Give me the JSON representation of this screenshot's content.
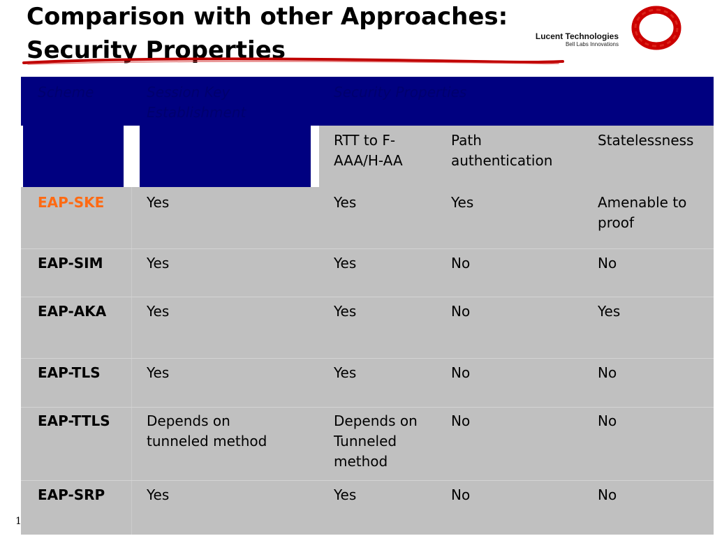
{
  "slide": {
    "title_line1": "Comparison with other Approaches:",
    "title_line2": "Security Properties",
    "brand_name": "Lucent Technologies",
    "brand_tagline": "Bell Labs Innovations",
    "page_number": "1",
    "accent_color": "#cc0000",
    "header_color": "#000080",
    "highlight_color": "#ff6a13"
  },
  "table": {
    "headers": {
      "scheme": "Scheme",
      "session_key": "Session Key Establishment",
      "security_properties": "Security Properties",
      "rtt": "RTT to F-AAA/H-AA",
      "path_auth": "Path authentication",
      "statelessness": "Statelessness"
    },
    "rows": [
      {
        "scheme": "EAP-SKE",
        "session_key": "Yes",
        "rtt": "Yes",
        "path_auth": "Yes",
        "statelessness": "Amenable to proof",
        "highlight": true
      },
      {
        "scheme": "EAP-SIM",
        "session_key": "Yes",
        "rtt": "Yes",
        "path_auth": "No",
        "statelessness": "No",
        "highlight": false
      },
      {
        "scheme": "EAP-AKA",
        "session_key": "Yes",
        "rtt": "Yes",
        "path_auth": "No",
        "statelessness": "Yes",
        "highlight": false
      },
      {
        "scheme": "EAP-TLS",
        "session_key": "Yes",
        "rtt": "Yes",
        "path_auth": "No",
        "statelessness": "No",
        "highlight": false
      },
      {
        "scheme": "EAP-TTLS",
        "session_key": "Depends on tunneled method",
        "rtt": "Depends on Tunneled method",
        "path_auth": "No",
        "statelessness": "No",
        "highlight": false
      },
      {
        "scheme": "EAP-SRP",
        "session_key": "Yes",
        "rtt": "Yes",
        "path_auth": "No",
        "statelessness": "No",
        "highlight": false
      }
    ]
  }
}
